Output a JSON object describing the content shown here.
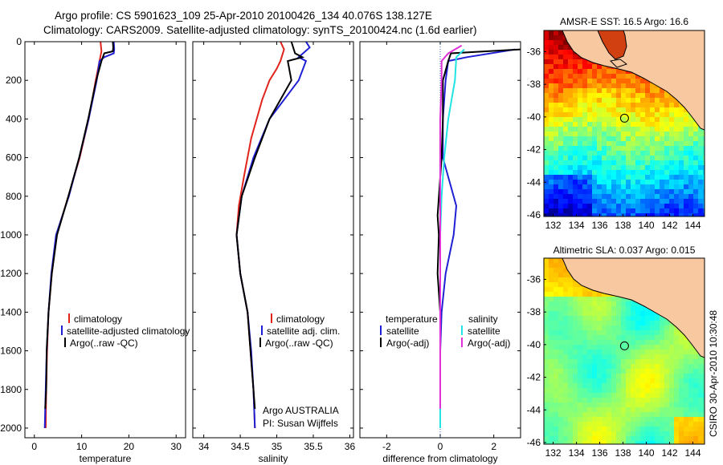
{
  "header": {
    "line1": "Argo profile: CS 5901623_109 25-Apr-2010 20100426_134 40.076S 138.127E",
    "line2": "Climatology: CARS2009. Satellite-adjusted climatology: synTS_20100424.nc (1.6d earlier)"
  },
  "colors": {
    "climatology": "#e0241c",
    "satellite": "#1f1fd6",
    "argo": "#000000",
    "salinity_satellite": "#22e4e4",
    "salinity_argo": "#e030d8",
    "land": "#f8c8a0"
  },
  "chart_data": [
    {
      "type": "line",
      "xlabel": "temperature",
      "xlim": [
        -2,
        32
      ],
      "xticks": [
        "0",
        "10",
        "20",
        "30"
      ],
      "ylim": [
        0,
        2050
      ],
      "yticks": [
        "0",
        "200",
        "400",
        "600",
        "800",
        "1000",
        "1200",
        "1400",
        "1600",
        "1800",
        "2000"
      ],
      "series": [
        {
          "name": "climatology",
          "color": "#e0241c",
          "points": [
            [
              14.0,
              0
            ],
            [
              14.2,
              50
            ],
            [
              13.8,
              100
            ],
            [
              13.0,
              200
            ],
            [
              11.5,
              400
            ],
            [
              9.6,
              600
            ],
            [
              7.2,
              800
            ],
            [
              4.7,
              1000
            ],
            [
              3.7,
              1200
            ],
            [
              3.0,
              1400
            ],
            [
              2.7,
              1600
            ],
            [
              2.5,
              1800
            ],
            [
              2.4,
              2000
            ]
          ]
        },
        {
          "name": "satellite-adjusted climatology",
          "color": "#1f1fd6",
          "points": [
            [
              16.8,
              0
            ],
            [
              16.9,
              40
            ],
            [
              16.8,
              60
            ],
            [
              14.8,
              80
            ],
            [
              13.8,
              100
            ],
            [
              13.2,
              200
            ],
            [
              11.5,
              400
            ],
            [
              9.5,
              600
            ],
            [
              7.3,
              800
            ],
            [
              4.6,
              1000
            ],
            [
              3.6,
              1200
            ],
            [
              3.0,
              1400
            ],
            [
              2.6,
              1600
            ],
            [
              2.4,
              1800
            ],
            [
              2.2,
              2000
            ]
          ]
        },
        {
          "name": "Argo(..raw -QC)",
          "color": "#000000",
          "points": [
            [
              16.6,
              0
            ],
            [
              16.7,
              30
            ],
            [
              16.6,
              50
            ],
            [
              14.8,
              60
            ],
            [
              14.2,
              100
            ],
            [
              13.1,
              200
            ],
            [
              11.4,
              400
            ],
            [
              9.5,
              600
            ],
            [
              7.2,
              800
            ],
            [
              4.8,
              1000
            ],
            [
              3.7,
              1200
            ],
            [
              3.0,
              1400
            ],
            [
              2.6,
              1600
            ],
            [
              2.5,
              1800
            ],
            [
              2.3,
              1900
            ]
          ]
        }
      ],
      "legend": [
        "climatology",
        "satellite-adjusted climatology",
        "Argo(..raw -QC)"
      ]
    },
    {
      "type": "line",
      "xlabel": "salinity",
      "xlim": [
        33.85,
        36.05
      ],
      "xticks": [
        "34",
        "34.5",
        "35",
        "35.5",
        "36"
      ],
      "ylim": [
        0,
        2050
      ],
      "series": [
        {
          "name": "climatology",
          "color": "#e0241c",
          "points": [
            [
              35.05,
              0
            ],
            [
              35.1,
              40
            ],
            [
              35.05,
              100
            ],
            [
              35.0,
              140
            ],
            [
              34.9,
              200
            ],
            [
              34.8,
              300
            ],
            [
              34.65,
              500
            ],
            [
              34.55,
              700
            ],
            [
              34.48,
              850
            ],
            [
              34.45,
              1000
            ],
            [
              34.5,
              1200
            ],
            [
              34.6,
              1400
            ],
            [
              34.64,
              1600
            ],
            [
              34.68,
              1800
            ],
            [
              34.7,
              2000
            ]
          ]
        },
        {
          "name": "satellite adj. clim.",
          "color": "#1f1fd6",
          "points": [
            [
              35.4,
              0
            ],
            [
              35.45,
              30
            ],
            [
              35.3,
              80
            ],
            [
              35.4,
              100
            ],
            [
              35.3,
              200
            ],
            [
              34.9,
              400
            ],
            [
              34.68,
              600
            ],
            [
              34.52,
              800
            ],
            [
              34.45,
              1000
            ],
            [
              34.5,
              1200
            ],
            [
              34.6,
              1400
            ],
            [
              34.65,
              1600
            ],
            [
              34.68,
              1800
            ],
            [
              34.7,
              2000
            ]
          ]
        },
        {
          "name": "Argo(..raw -QC)",
          "color": "#000000",
          "points": [
            [
              35.2,
              0
            ],
            [
              35.25,
              60
            ],
            [
              35.35,
              80
            ],
            [
              35.15,
              100
            ],
            [
              35.2,
              200
            ],
            [
              34.9,
              400
            ],
            [
              34.7,
              600
            ],
            [
              34.52,
              800
            ],
            [
              34.45,
              1000
            ],
            [
              34.5,
              1200
            ],
            [
              34.6,
              1400
            ],
            [
              34.64,
              1600
            ],
            [
              34.68,
              1800
            ],
            [
              34.7,
              1900
            ]
          ]
        }
      ],
      "legend": [
        "climatology",
        "satellite adj. clim.",
        "Argo(..raw -QC)"
      ],
      "annotation": [
        "Argo AUSTRALIA",
        "PI: Susan Wijffels"
      ]
    },
    {
      "type": "line",
      "xlabel": "difference from climatology",
      "xlim": [
        -3,
        3
      ],
      "xticks": [
        "-2",
        "0",
        "2"
      ],
      "ylim": [
        0,
        2050
      ],
      "series": [
        {
          "name": "temperature satellite",
          "color": "#1f1fd6",
          "points": [
            [
              2.8,
              40
            ],
            [
              1.0,
              80
            ],
            [
              0.3,
              100
            ],
            [
              0.2,
              200
            ],
            [
              0.1,
              400
            ],
            [
              0.1,
              600
            ],
            [
              0.6,
              850
            ],
            [
              0.5,
              1000
            ],
            [
              0.2,
              1200
            ],
            [
              0.05,
              1400
            ],
            [
              0.0,
              1600
            ],
            [
              0.0,
              1800
            ],
            [
              0.0,
              2000
            ]
          ]
        },
        {
          "name": "temperature Argo(-adj)",
          "color": "#000000",
          "points": [
            [
              3.0,
              40
            ],
            [
              0.4,
              60
            ],
            [
              0.3,
              100
            ],
            [
              0.1,
              200
            ],
            [
              0.1,
              400
            ],
            [
              0.05,
              600
            ],
            [
              -0.1,
              900
            ],
            [
              -0.05,
              1000
            ],
            [
              -0.1,
              1200
            ],
            [
              0.0,
              1400
            ],
            [
              0.0,
              1600
            ],
            [
              0.0,
              1800
            ],
            [
              0.0,
              1900
            ]
          ]
        },
        {
          "name": "salinity satellite",
          "color": "#22e4e4",
          "points": [
            [
              0.9,
              40
            ],
            [
              0.6,
              80
            ],
            [
              0.55,
              200
            ],
            [
              0.3,
              400
            ],
            [
              0.15,
              600
            ],
            [
              0.05,
              800
            ],
            [
              0.0,
              1000
            ],
            [
              0.0,
              1200
            ],
            [
              0.0,
              1400
            ],
            [
              0.0,
              1600
            ],
            [
              0.0,
              1800
            ],
            [
              0.0,
              2000
            ]
          ]
        },
        {
          "name": "salinity Argo(-adj)",
          "color": "#e030d8",
          "points": [
            [
              0.8,
              20
            ],
            [
              0.3,
              60
            ],
            [
              0.05,
              100
            ],
            [
              0.05,
              200
            ],
            [
              0.0,
              400
            ],
            [
              0.0,
              600
            ],
            [
              0.0,
              800
            ],
            [
              0.0,
              1000
            ],
            [
              0.0,
              1200
            ],
            [
              0.0,
              1400
            ],
            [
              0.0,
              1600
            ],
            [
              0.0,
              1800
            ],
            [
              0.0,
              1900
            ]
          ]
        }
      ],
      "legend_left_title": "temperature",
      "legend_right_title": "salinity",
      "legend": [
        "satellite",
        "Argo(-adj)",
        "satellite",
        "Argo(-adj)"
      ]
    },
    {
      "type": "heatmap",
      "title": "AMSR-E SST: 16.5 Argo: 16.6",
      "xticks": [
        "132",
        "134",
        "136",
        "138",
        "140",
        "142",
        "144"
      ],
      "yticks": [
        "-36",
        "-38",
        "-40",
        "-42",
        "-44",
        "-46"
      ],
      "xlim": [
        131.2,
        145.0
      ],
      "ylim": [
        -46.1,
        -34.7
      ],
      "marker": {
        "lon": 138.127,
        "lat": -40.076
      }
    },
    {
      "type": "heatmap",
      "title": "Altimetric SLA: 0.037 Argo: 0.015",
      "xticks": [
        "132",
        "134",
        "136",
        "138",
        "140",
        "142",
        "144"
      ],
      "yticks": [
        "-36",
        "-38",
        "-40",
        "-42",
        "-44",
        "-46"
      ],
      "xlim": [
        131.2,
        145.0
      ],
      "ylim": [
        -46.1,
        -34.7
      ],
      "marker": {
        "lon": 138.127,
        "lat": -40.076
      }
    }
  ],
  "side_label": "CSIRO 30-Apr-2010 10:30:48"
}
